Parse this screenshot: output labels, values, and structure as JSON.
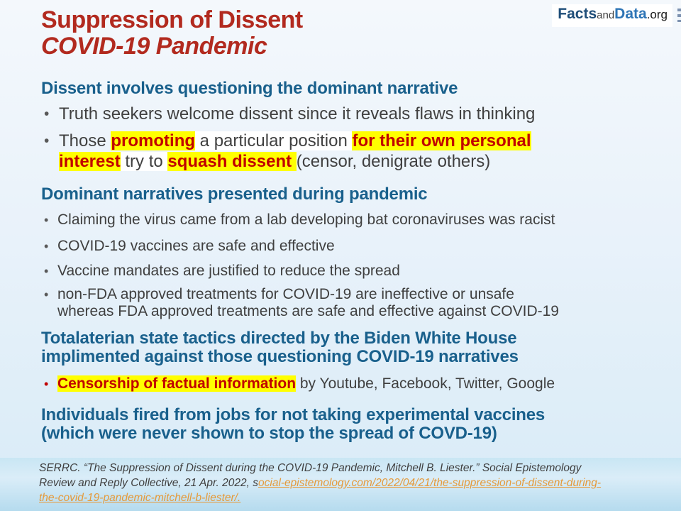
{
  "title": {
    "line1": "Suppression of Dissent",
    "line2": "COVID-19 Pandemic"
  },
  "logo": {
    "facts": "Facts",
    "and": "and",
    "data": "Data",
    "org": ".org"
  },
  "sections": [
    {
      "heading": "Dissent involves questioning the dominant narrative",
      "bullets": [
        {
          "runs": [
            {
              "t": "Truth seekers welcome dissent since it reveals flaws in thinking"
            }
          ]
        },
        {
          "runs": [
            {
              "t": "Those "
            },
            {
              "t": "promoting",
              "hl": true,
              "red": true
            },
            {
              "t": " a particular position ",
              "wh": true
            },
            {
              "t": "for their own personal",
              "hl": true,
              "red": true
            },
            {
              "br": true
            },
            {
              "t": "interest",
              "hl": true,
              "red": true
            },
            {
              "t": " try to ",
              "wh": true
            },
            {
              "t": "squash dissent ",
              "hl": true,
              "red": true
            },
            {
              "t": "(censor, denigrate others)"
            }
          ]
        }
      ]
    },
    {
      "heading": "Dominant narratives presented during pandemic",
      "bullets": [
        {
          "runs": [
            {
              "t": "Claiming the virus came from a lab developing bat coronaviruses was racist"
            }
          ]
        },
        {
          "runs": [
            {
              "t": "COVID-19 vaccines are safe and effective"
            }
          ]
        },
        {
          "runs": [
            {
              "t": "Vaccine mandates are justified to reduce the spread"
            }
          ]
        },
        {
          "runs": [
            {
              "t": "non-FDA approved treatments for COVID-19 are ineffective or unsafe"
            },
            {
              "br": true
            },
            {
              "t": "whereas FDA approved treatments are safe and effective against COVID-19"
            }
          ]
        }
      ]
    },
    {
      "heading_runs": [
        {
          "t": "Totalaterian state tactics directed by the Biden White House"
        },
        {
          "br": true
        },
        {
          "t": "implimented against those questioning COVID-19 narratives"
        }
      ],
      "bullets": [
        {
          "runs": [
            {
              "t": "Censorship of factual information",
              "hl": true,
              "red": true
            },
            {
              "t": " by Youtube, Facebook, Twitter, Google"
            }
          ]
        }
      ]
    },
    {
      "heading_runs": [
        {
          "t": "Individuals fired from jobs for not taking experimental vaccines"
        },
        {
          "br": true
        },
        {
          "t": "(which were never shown to stop the spread of COVD-19)"
        }
      ]
    }
  ],
  "footer": {
    "runs": [
      {
        "t": "SERRC. “The Suppression of Dissent during the COVID-19 Pandemic, Mitchell B. Liester.” Social Epistemology"
      },
      {
        "br": true
      },
      {
        "t": "Review and Reply Collective, 21 Apr. 2022, s"
      },
      {
        "t": "ocial-epistemology.com/2022/04/21/the-suppression-of-dissent-during-",
        "link": true
      },
      {
        "br": true
      },
      {
        "t": "the-covid-19-pandemic-mitchell-b-liester/.",
        "link": true
      }
    ]
  },
  "colors": {
    "title_red": "#b22a1f",
    "heading_blue": "#19608c",
    "body_text": "#404040",
    "highlight_yellow": "#ffff00",
    "highlight_text_red": "#c00000",
    "link_orange": "#e59a3b",
    "logo_facts_blue": "#1f4e79",
    "logo_data_blue": "#2e75b6"
  }
}
